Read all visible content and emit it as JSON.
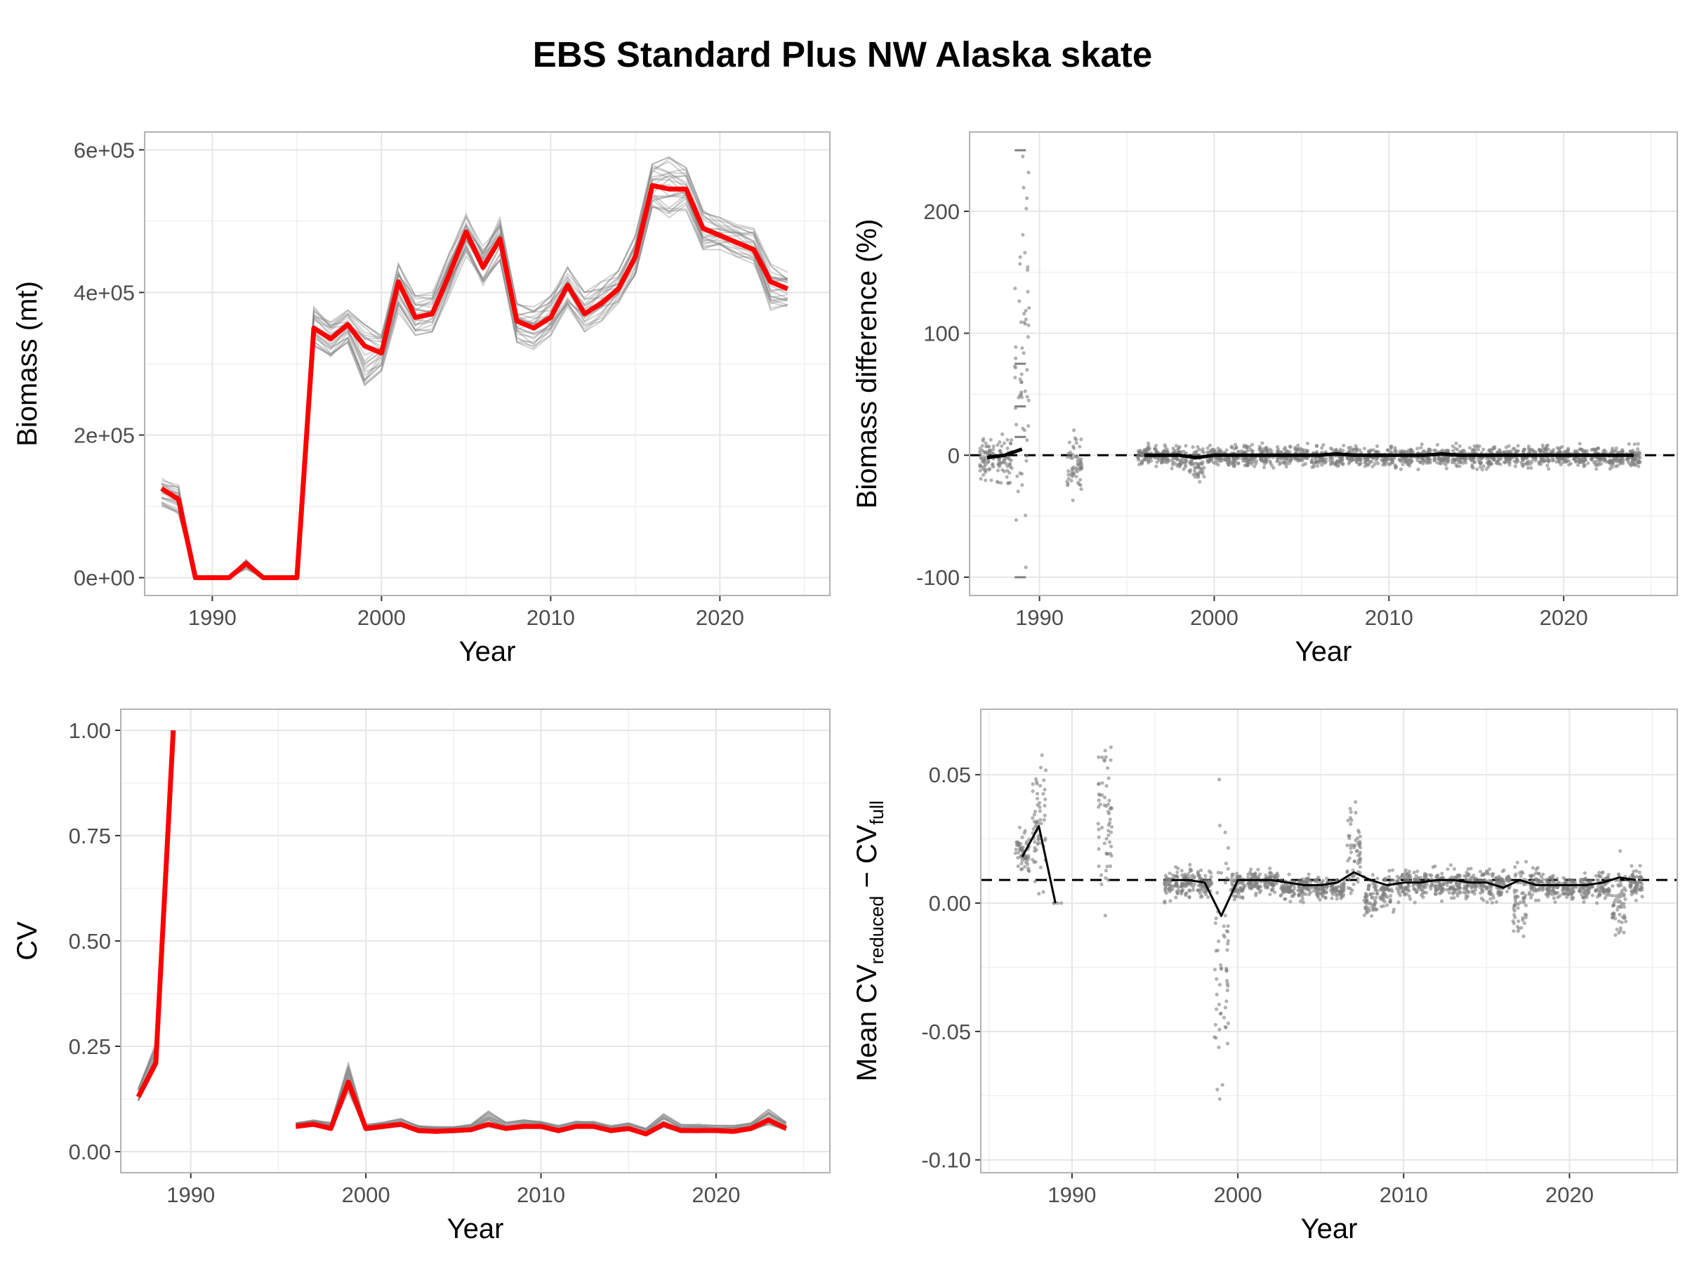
{
  "title": "EBS Standard Plus NW Alaska skate",
  "colors": {
    "highlight": "#ff0000",
    "replicate": "#7f7f7f",
    "mean": "#000000",
    "grid": "#e6e6e6",
    "frame": "#b3b3b3"
  },
  "chart_data": [
    {
      "id": "biomass",
      "type": "line",
      "xlabel": "Year",
      "ylabel": "Biomass (mt)",
      "xlim": [
        1986,
        2026.5
      ],
      "ylim": [
        -25000,
        625000
      ],
      "xticks": [
        1990,
        2000,
        2010,
        2020
      ],
      "xtick_labels": [
        "1990",
        "2000",
        "2010",
        "2020"
      ],
      "yticks": [
        0,
        200000,
        400000,
        600000
      ],
      "ytick_labels": [
        "0e+00",
        "2e+05",
        "4e+05",
        "6e+05"
      ],
      "grid": true,
      "legend": "none",
      "series": [
        {
          "role": "full-survey",
          "color": "#ff0000",
          "x": [
            1987,
            1988,
            1989,
            1990,
            1991,
            1992,
            1993,
            1994,
            1995,
            1996,
            1997,
            1998,
            1999,
            2000,
            2001,
            2002,
            2003,
            2004,
            2005,
            2006,
            2007,
            2008,
            2009,
            2010,
            2011,
            2012,
            2013,
            2014,
            2015,
            2016,
            2017,
            2018,
            2019,
            2020,
            2021,
            2022,
            2023,
            2024
          ],
          "values": [
            125000,
            110000,
            0,
            0,
            0,
            20000,
            0,
            0,
            0,
            350000,
            335000,
            355000,
            325000,
            315000,
            415000,
            365000,
            370000,
            425000,
            485000,
            435000,
            475000,
            360000,
            350000,
            365000,
            410000,
            370000,
            385000,
            405000,
            450000,
            550000,
            545000,
            545000,
            490000,
            480000,
            470000,
            460000,
            415000,
            405000
          ]
        }
      ],
      "replicate_band": {
        "x": [
          1987,
          1988,
          1989,
          1990,
          1991,
          1992,
          1993,
          1994,
          1995,
          1996,
          1997,
          1998,
          1999,
          2000,
          2001,
          2002,
          2003,
          2004,
          2005,
          2006,
          2007,
          2008,
          2009,
          2010,
          2011,
          2012,
          2013,
          2014,
          2015,
          2016,
          2017,
          2018,
          2019,
          2020,
          2021,
          2022,
          2023,
          2024
        ],
        "low": [
          100000,
          90000,
          0,
          0,
          0,
          12000,
          0,
          0,
          0,
          325000,
          310000,
          330000,
          260000,
          290000,
          370000,
          340000,
          345000,
          395000,
          450000,
          410000,
          445000,
          330000,
          320000,
          340000,
          380000,
          345000,
          360000,
          385000,
          425000,
          520000,
          505000,
          515000,
          460000,
          460000,
          450000,
          440000,
          375000,
          380000
        ],
        "high": [
          140000,
          130000,
          2000,
          1000,
          1000,
          25000,
          1000,
          1000,
          1000,
          380000,
          360000,
          375000,
          355000,
          340000,
          440000,
          395000,
          400000,
          455000,
          510000,
          465000,
          505000,
          385000,
          380000,
          395000,
          435000,
          400000,
          415000,
          430000,
          480000,
          580000,
          590000,
          575000,
          515000,
          505000,
          495000,
          490000,
          440000,
          430000
        ]
      }
    },
    {
      "id": "biomass-difference",
      "type": "scatter",
      "xlabel": "Year",
      "ylabel": "Biomass difference (%)",
      "xlim": [
        1986,
        2026.5
      ],
      "ylim": [
        -115,
        265
      ],
      "xticks": [
        1990,
        2000,
        2010,
        2020
      ],
      "xtick_labels": [
        "1990",
        "2000",
        "2010",
        "2020"
      ],
      "yticks": [
        -100,
        0,
        100,
        200
      ],
      "ytick_labels": [
        "-100",
        "0",
        "100",
        "200"
      ],
      "grid": true,
      "reference_line": 0,
      "years": [
        1987,
        1988,
        1989,
        1992,
        1996,
        1997,
        1998,
        1999,
        2000,
        2001,
        2002,
        2003,
        2004,
        2005,
        2006,
        2007,
        2008,
        2009,
        2010,
        2011,
        2012,
        2013,
        2014,
        2015,
        2016,
        2017,
        2018,
        2019,
        2020,
        2021,
        2022,
        2023,
        2024
      ],
      "spread_low": [
        -22,
        -30,
        -100,
        -40,
        -12,
        -12,
        -14,
        -25,
        -12,
        -12,
        -12,
        -12,
        -12,
        -10,
        -12,
        -12,
        -12,
        -14,
        -12,
        -12,
        -12,
        -12,
        -12,
        -12,
        -12,
        -12,
        -12,
        -12,
        -12,
        -12,
        -12,
        -14,
        -14
      ],
      "spread_high": [
        18,
        22,
        250,
        25,
        10,
        10,
        12,
        12,
        10,
        10,
        10,
        10,
        10,
        10,
        10,
        10,
        10,
        10,
        10,
        10,
        10,
        10,
        10,
        10,
        10,
        10,
        10,
        10,
        10,
        10,
        10,
        10,
        10
      ],
      "mean_line": {
        "segments": [
          {
            "x": [
              1987,
              1988,
              1989
            ],
            "values": [
              -2,
              0,
              5
            ]
          },
          {
            "x": [
              1996,
              1997,
              1998,
              1999,
              2000,
              2001,
              2002,
              2003,
              2004,
              2005,
              2006,
              2007,
              2008,
              2009,
              2010,
              2011,
              2012,
              2013,
              2014,
              2015,
              2016,
              2017,
              2018,
              2019,
              2020,
              2021,
              2022,
              2023,
              2024
            ],
            "values": [
              0,
              0,
              0,
              -2,
              0,
              0,
              0,
              0,
              0,
              0,
              0,
              1,
              0,
              0,
              0,
              0,
              0,
              1,
              0,
              0,
              0,
              0,
              0,
              0,
              0,
              0,
              0,
              0,
              0
            ]
          }
        ]
      },
      "discrete_points_1989": [
        250,
        75,
        40,
        15,
        -100
      ]
    },
    {
      "id": "cv",
      "type": "line",
      "xlabel": "Year",
      "ylabel": "CV",
      "xlim": [
        1986,
        2026.5
      ],
      "ylim": [
        -0.05,
        1.05
      ],
      "xticks": [
        1990,
        2000,
        2010,
        2020
      ],
      "xtick_labels": [
        "1990",
        "2000",
        "2010",
        "2020"
      ],
      "yticks": [
        0,
        0.25,
        0.5,
        0.75,
        1.0
      ],
      "ytick_labels": [
        "0.00",
        "0.25",
        "0.50",
        "0.75",
        "1.00"
      ],
      "grid": true,
      "series": [
        {
          "role": "full-survey",
          "color": "#ff0000",
          "segments": [
            {
              "x": [
                1987,
                1988,
                1989
              ],
              "values": [
                0.13,
                0.21,
                1.0
              ]
            },
            {
              "x": [
                1996,
                1997,
                1998,
                1999,
                2000,
                2001,
                2002,
                2003,
                2004,
                2005,
                2006,
                2007,
                2008,
                2009,
                2010,
                2011,
                2012,
                2013,
                2014,
                2015,
                2016,
                2017,
                2018,
                2019,
                2020,
                2021,
                2022,
                2023,
                2024
              ],
              "values": [
                0.06,
                0.065,
                0.055,
                0.165,
                0.055,
                0.06,
                0.065,
                0.05,
                0.048,
                0.05,
                0.052,
                0.065,
                0.055,
                0.06,
                0.06,
                0.05,
                0.06,
                0.06,
                0.05,
                0.055,
                0.042,
                0.065,
                0.05,
                0.05,
                0.05,
                0.048,
                0.055,
                0.075,
                0.055
              ]
            }
          ]
        }
      ],
      "replicate_band": {
        "segments": [
          {
            "x": [
              1987,
              1988,
              1989
            ],
            "low": [
              0.12,
              0.2,
              0.98
            ],
            "high": [
              0.15,
              0.26,
              1.0
            ]
          },
          {
            "x": [
              1996,
              1997,
              1998,
              1999,
              2000,
              2001,
              2002,
              2003,
              2004,
              2005,
              2006,
              2007,
              2008,
              2009,
              2010,
              2011,
              2012,
              2013,
              2014,
              2015,
              2016,
              2017,
              2018,
              2019,
              2020,
              2021,
              2022,
              2023,
              2024
            ],
            "low": [
              0.055,
              0.06,
              0.05,
              0.14,
              0.05,
              0.055,
              0.06,
              0.045,
              0.045,
              0.045,
              0.048,
              0.058,
              0.05,
              0.055,
              0.055,
              0.045,
              0.055,
              0.055,
              0.045,
              0.05,
              0.038,
              0.058,
              0.045,
              0.045,
              0.045,
              0.045,
              0.05,
              0.065,
              0.05
            ],
            "high": [
              0.07,
              0.075,
              0.07,
              0.21,
              0.065,
              0.07,
              0.078,
              0.062,
              0.06,
              0.06,
              0.065,
              0.1,
              0.07,
              0.075,
              0.072,
              0.062,
              0.072,
              0.072,
              0.062,
              0.068,
              0.055,
              0.09,
              0.065,
              0.065,
              0.062,
              0.062,
              0.068,
              0.1,
              0.072
            ]
          }
        ]
      }
    },
    {
      "id": "cv-difference",
      "type": "scatter",
      "xlabel": "Year",
      "ylabel_main": "Mean CV",
      "ylabel_sub1": "reduced",
      "ylabel_mid": " − CV",
      "ylabel_sub2": "full",
      "xlim": [
        1984.5,
        2026.5
      ],
      "ylim": [
        -0.105,
        0.0755
      ],
      "xticks": [
        1990,
        2000,
        2010,
        2020
      ],
      "xtick_labels": [
        "1990",
        "2000",
        "2010",
        "2020"
      ],
      "yticks": [
        -0.1,
        -0.05,
        0.0,
        0.05
      ],
      "ytick_labels": [
        "-0.10",
        "-0.05",
        "0.00",
        "0.05"
      ],
      "grid": true,
      "reference_line": 0.009,
      "years": [
        1987,
        1988,
        1989,
        1992,
        1996,
        1997,
        1998,
        1999,
        2000,
        2001,
        2002,
        2003,
        2004,
        2005,
        2006,
        2007,
        2008,
        2009,
        2010,
        2011,
        2012,
        2013,
        2014,
        2015,
        2016,
        2017,
        2018,
        2019,
        2020,
        2021,
        2022,
        2023,
        2024
      ],
      "spread_low": [
        0.01,
        -0.002,
        0.0,
        -0.005,
        0.0,
        0.0,
        0.0,
        -0.095,
        0.0,
        0.002,
        0.002,
        0.0,
        0.0,
        0.0,
        0.0,
        0.0,
        -0.01,
        -0.005,
        0.0,
        0.0,
        0.0,
        0.0,
        0.0,
        0.0,
        0.0,
        -0.018,
        0.0,
        0.0,
        0.0,
        0.0,
        -0.002,
        -0.02,
        0.0
      ],
      "spread_high": [
        0.03,
        0.06,
        0.0,
        0.07,
        0.015,
        0.015,
        0.015,
        0.052,
        0.015,
        0.015,
        0.015,
        0.012,
        0.012,
        0.012,
        0.012,
        0.042,
        0.015,
        0.015,
        0.015,
        0.015,
        0.015,
        0.015,
        0.015,
        0.015,
        0.015,
        0.02,
        0.015,
        0.012,
        0.012,
        0.012,
        0.015,
        0.022,
        0.015
      ],
      "mean_line": {
        "segments": [
          {
            "x": [
              1987,
              1988,
              1989
            ],
            "values": [
              0.018,
              0.03,
              0.0
            ]
          },
          {
            "x": [
              1996,
              1997,
              1998,
              1999,
              2000,
              2001,
              2002,
              2003,
              2004,
              2005,
              2006,
              2007,
              2008,
              2009,
              2010,
              2011,
              2012,
              2013,
              2014,
              2015,
              2016,
              2017,
              2018,
              2019,
              2020,
              2021,
              2022,
              2023,
              2024
            ],
            "values": [
              0.009,
              0.009,
              0.008,
              -0.005,
              0.009,
              0.009,
              0.009,
              0.008,
              0.007,
              0.007,
              0.008,
              0.012,
              0.009,
              0.007,
              0.008,
              0.008,
              0.009,
              0.009,
              0.008,
              0.008,
              0.006,
              0.009,
              0.007,
              0.007,
              0.007,
              0.007,
              0.008,
              0.01,
              0.009
            ]
          }
        ]
      }
    }
  ]
}
